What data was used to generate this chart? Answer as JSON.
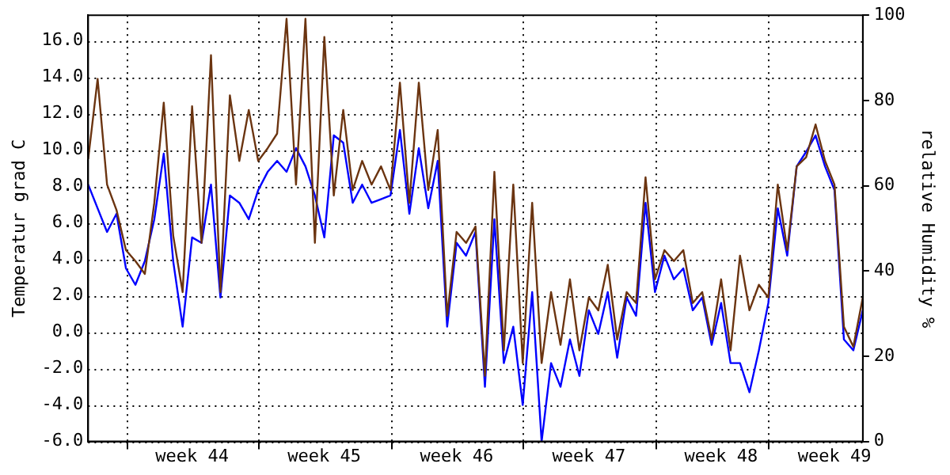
{
  "chart_data": {
    "type": "line",
    "ylabel": "Temperatur grad C",
    "y2label": "relative Humidity %",
    "categories": [
      null,
      null,
      null,
      null,
      null,
      null,
      null,
      null,
      null,
      null,
      null,
      "week 44",
      null,
      null,
      null,
      null,
      null,
      null,
      null,
      null,
      null,
      null,
      null,
      null,
      null,
      "week 45",
      null,
      null,
      null,
      null,
      null,
      null,
      null,
      null,
      null,
      null,
      null,
      null,
      null,
      "week 46",
      null,
      null,
      null,
      null,
      null,
      null,
      null,
      null,
      null,
      null,
      null,
      null,
      null,
      "week 47",
      null,
      null,
      null,
      null,
      null,
      null,
      null,
      null,
      null,
      null,
      null,
      null,
      null,
      "week 48",
      null,
      null,
      null,
      null,
      null,
      null,
      null,
      null,
      null,
      null,
      null,
      "week 49",
      null,
      null,
      null
    ],
    "ylim": [
      -6,
      17.4
    ],
    "yticks": [
      {
        "value": -6,
        "label": "-6.0"
      },
      {
        "value": -4,
        "label": "-4.0"
      },
      {
        "value": -2,
        "label": "-2.0"
      },
      {
        "value": 0,
        "label": "0.0"
      },
      {
        "value": 2,
        "label": "2.0"
      },
      {
        "value": 4,
        "label": "4.0"
      },
      {
        "value": 6,
        "label": "6.0"
      },
      {
        "value": 8,
        "label": "8.0"
      },
      {
        "value": 10,
        "label": "10.0"
      },
      {
        "value": 12,
        "label": "12.0"
      },
      {
        "value": 14,
        "label": "14.0"
      },
      {
        "value": 16,
        "label": "16.0"
      }
    ],
    "y2lim": [
      0,
      100
    ],
    "y2ticks": [
      0,
      20,
      40,
      60,
      80,
      100
    ],
    "grid": true,
    "legend": false,
    "marker": "none",
    "line_style": "solid",
    "series": [
      {
        "color": "#6b3410",
        "values": [
          9.5,
          13.9,
          8.1,
          6.7,
          4.5,
          3.9,
          3.2,
          7.1,
          12.6,
          5.3,
          2.2,
          12.4,
          4.9,
          15.2,
          2.2,
          13.0,
          9.4,
          12.2,
          9.4,
          10.1,
          10.9,
          17.2,
          8.1,
          17.2,
          4.9,
          16.2,
          7.5,
          12.2,
          7.8,
          9.4,
          8.1,
          9.1,
          7.8,
          13.7,
          7.1,
          13.7,
          7.8,
          11.1,
          0.9,
          5.5,
          4.9,
          5.8,
          -2.4,
          8.8,
          -1.0,
          8.1,
          -1.7,
          7.1,
          -1.7,
          2.2,
          -0.7,
          2.9,
          -1.0,
          1.9,
          1.2,
          3.7,
          -0.4,
          2.2,
          1.6,
          8.5,
          2.9,
          4.5,
          3.9,
          4.5,
          1.6,
          2.2,
          -0.4,
          2.9,
          -1.0,
          4.2,
          1.2,
          2.6,
          1.9,
          8.1,
          4.5,
          9.1,
          9.6,
          11.4,
          9.4,
          8.1,
          0.3,
          -0.8,
          1.9
        ]
      },
      {
        "color": "#0000ff",
        "values": [
          8.1,
          6.8,
          5.5,
          6.5,
          3.5,
          2.6,
          3.9,
          6.2,
          9.8,
          3.9,
          0.3,
          5.2,
          4.9,
          8.1,
          1.9,
          7.5,
          7.1,
          6.2,
          7.8,
          8.8,
          9.4,
          8.8,
          10.1,
          9.1,
          7.5,
          5.2,
          10.8,
          10.4,
          7.1,
          8.1,
          7.1,
          7.3,
          7.5,
          11.1,
          6.5,
          10.1,
          6.8,
          9.4,
          0.3,
          4.9,
          4.2,
          5.5,
          -3.0,
          6.2,
          -1.7,
          0.3,
          -4.0,
          2.2,
          -6.0,
          -1.7,
          -3.0,
          -0.4,
          -2.4,
          1.2,
          -0.1,
          2.2,
          -1.4,
          1.9,
          0.9,
          7.1,
          2.2,
          4.2,
          2.9,
          3.5,
          1.2,
          1.9,
          -0.7,
          1.6,
          -1.7,
          -1.7,
          -3.3,
          -1.0,
          1.6,
          6.8,
          4.2,
          9.1,
          9.9,
          10.8,
          9.1,
          7.8,
          -0.4,
          -1.0,
          1.2
        ]
      }
    ]
  }
}
